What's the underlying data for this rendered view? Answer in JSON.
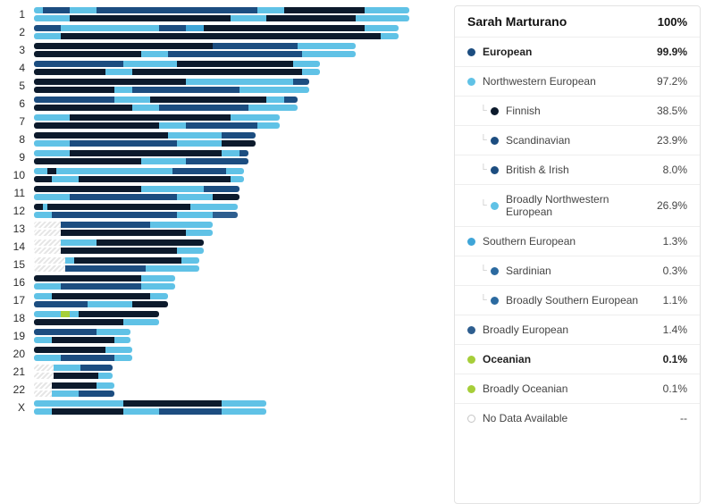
{
  "colors": {
    "finnish": "#0c1a2c",
    "scand": "#1c4d80",
    "british": "#1c4d80",
    "nweuro": "#60c2e6",
    "seuro": "#3fa5d8",
    "sard": "#2b6aa0",
    "bseuro": "#2b6aa0",
    "beuro": "#2e5e8f",
    "ocean": "#a6ce39",
    "nodata_stripe": "stripes"
  },
  "chromosomes": [
    {
      "label": "1",
      "length": 420,
      "bars": [
        {
          "segs": [
            [
              "nweuro",
              10
            ],
            [
              "scand",
              30
            ],
            [
              "nweuro",
              30
            ],
            [
              "scand",
              180
            ],
            [
              "nweuro",
              30
            ],
            [
              "finnish",
              90
            ],
            [
              "nweuro",
              50
            ]
          ]
        },
        {
          "segs": [
            [
              "nweuro",
              40
            ],
            [
              "finnish",
              180
            ],
            [
              "nweuro",
              40
            ],
            [
              "finnish",
              100
            ],
            [
              "nweuro",
              60
            ]
          ]
        }
      ]
    },
    {
      "label": "2",
      "length": 408,
      "bars": [
        {
          "segs": [
            [
              "scand",
              30
            ],
            [
              "nweuro",
              110
            ],
            [
              "scand",
              30
            ],
            [
              "seuro",
              20
            ],
            [
              "finnish",
              180
            ],
            [
              "nweuro",
              38
            ]
          ]
        },
        {
          "segs": [
            [
              "nweuro",
              30
            ],
            [
              "finnish",
              358
            ],
            [
              "nweuro",
              20
            ]
          ]
        }
      ]
    },
    {
      "label": "3",
      "length": 360,
      "bars": [
        {
          "segs": [
            [
              "finnish",
              200
            ],
            [
              "british",
              15
            ],
            [
              "scand",
              80
            ],
            [
              "nweuro",
              65
            ]
          ]
        },
        {
          "segs": [
            [
              "finnish",
              120
            ],
            [
              "nweuro",
              30
            ],
            [
              "scand",
              150
            ],
            [
              "nweuro",
              60
            ]
          ]
        }
      ]
    },
    {
      "label": "4",
      "length": 320,
      "bars": [
        {
          "segs": [
            [
              "scand",
              100
            ],
            [
              "nweuro",
              60
            ],
            [
              "finnish",
              130
            ],
            [
              "nweuro",
              30
            ]
          ]
        },
        {
          "segs": [
            [
              "finnish",
              80
            ],
            [
              "nweuro",
              30
            ],
            [
              "finnish",
              190
            ],
            [
              "nweuro",
              20
            ]
          ]
        }
      ]
    },
    {
      "label": "5",
      "length": 308,
      "bars": [
        {
          "segs": [
            [
              "finnish",
              170
            ],
            [
              "nweuro",
              120
            ],
            [
              "scand",
              18
            ]
          ]
        },
        {
          "segs": [
            [
              "finnish",
              90
            ],
            [
              "nweuro",
              20
            ],
            [
              "scand",
              120
            ],
            [
              "nweuro",
              78
            ]
          ]
        }
      ]
    },
    {
      "label": "6",
      "length": 295,
      "bars": [
        {
          "segs": [
            [
              "scand",
              90
            ],
            [
              "nweuro",
              40
            ],
            [
              "finnish",
              130
            ],
            [
              "nweuro",
              20
            ],
            [
              "scand",
              15
            ]
          ]
        },
        {
          "segs": [
            [
              "finnish",
              110
            ],
            [
              "nweuro",
              30
            ],
            [
              "scand",
              100
            ],
            [
              "nweuro",
              55
            ]
          ]
        }
      ]
    },
    {
      "label": "7",
      "length": 275,
      "bars": [
        {
          "segs": [
            [
              "nweuro",
              40
            ],
            [
              "finnish",
              180
            ],
            [
              "nweuro",
              55
            ]
          ]
        },
        {
          "segs": [
            [
              "finnish",
              140
            ],
            [
              "nweuro",
              30
            ],
            [
              "scand",
              80
            ],
            [
              "nweuro",
              25
            ]
          ]
        }
      ]
    },
    {
      "label": "8",
      "length": 248,
      "bars": [
        {
          "segs": [
            [
              "finnish",
              150
            ],
            [
              "nweuro",
              60
            ],
            [
              "scand",
              38
            ]
          ]
        },
        {
          "segs": [
            [
              "nweuro",
              40
            ],
            [
              "scand",
              120
            ],
            [
              "nweuro",
              50
            ],
            [
              "finnish",
              38
            ]
          ]
        }
      ]
    },
    {
      "label": "9",
      "length": 240,
      "bars": [
        {
          "segs": [
            [
              "nweuro",
              40
            ],
            [
              "finnish",
              170
            ],
            [
              "nweuro",
              20
            ],
            [
              "scand",
              10
            ]
          ]
        },
        {
          "segs": [
            [
              "finnish",
              120
            ],
            [
              "nweuro",
              50
            ],
            [
              "scand",
              70
            ]
          ]
        }
      ]
    },
    {
      "label": "10",
      "length": 235,
      "bars": [
        {
          "segs": [
            [
              "nweuro",
              15
            ],
            [
              "finnish",
              10
            ],
            [
              "nweuro",
              130
            ],
            [
              "scand",
              60
            ],
            [
              "nweuro",
              20
            ]
          ]
        },
        {
          "segs": [
            [
              "finnish",
              20
            ],
            [
              "nweuro",
              30
            ],
            [
              "finnish",
              170
            ],
            [
              "nweuro",
              15
            ]
          ]
        }
      ]
    },
    {
      "label": "11",
      "length": 230,
      "bars": [
        {
          "segs": [
            [
              "finnish",
              120
            ],
            [
              "nweuro",
              70
            ],
            [
              "scand",
              40
            ]
          ]
        },
        {
          "segs": [
            [
              "nweuro",
              40
            ],
            [
              "scand",
              120
            ],
            [
              "nweuro",
              40
            ],
            [
              "finnish",
              30
            ]
          ]
        }
      ]
    },
    {
      "label": "12",
      "length": 228,
      "bars": [
        {
          "segs": [
            [
              "finnish",
              10
            ],
            [
              "nweuro",
              5
            ],
            [
              "finnish",
              160
            ],
            [
              "nweuro",
              53
            ]
          ]
        },
        {
          "segs": [
            [
              "nweuro",
              20
            ],
            [
              "scand",
              140
            ],
            [
              "nweuro",
              40
            ],
            [
              "beuro",
              28
            ]
          ]
        }
      ]
    },
    {
      "label": "13",
      "length": 200,
      "bars": [
        {
          "stripe": 30,
          "segs": [
            [
              "scand",
              100
            ],
            [
              "nweuro",
              70
            ]
          ]
        },
        {
          "stripe": 30,
          "segs": [
            [
              "finnish",
              140
            ],
            [
              "nweuro",
              30
            ]
          ]
        }
      ]
    },
    {
      "label": "14",
      "length": 190,
      "bars": [
        {
          "stripe": 30,
          "segs": [
            [
              "nweuro",
              40
            ],
            [
              "finnish",
              120
            ]
          ]
        },
        {
          "stripe": 30,
          "segs": [
            [
              "finnish",
              130
            ],
            [
              "nweuro",
              30
            ]
          ]
        }
      ]
    },
    {
      "label": "15",
      "length": 185,
      "bars": [
        {
          "stripe": 35,
          "segs": [
            [
              "nweuro",
              10
            ],
            [
              "finnish",
              120
            ],
            [
              "nweuro",
              20
            ]
          ]
        },
        {
          "stripe": 35,
          "segs": [
            [
              "scand",
              90
            ],
            [
              "nweuro",
              60
            ]
          ]
        }
      ]
    },
    {
      "label": "16",
      "length": 158,
      "bars": [
        {
          "segs": [
            [
              "finnish",
              120
            ],
            [
              "nweuro",
              38
            ]
          ]
        },
        {
          "segs": [
            [
              "nweuro",
              30
            ],
            [
              "scand",
              90
            ],
            [
              "nweuro",
              38
            ]
          ]
        }
      ]
    },
    {
      "label": "17",
      "length": 150,
      "bars": [
        {
          "segs": [
            [
              "nweuro",
              20
            ],
            [
              "finnish",
              110
            ],
            [
              "nweuro",
              20
            ]
          ]
        },
        {
          "segs": [
            [
              "scand",
              60
            ],
            [
              "nweuro",
              50
            ],
            [
              "finnish",
              40
            ]
          ]
        }
      ]
    },
    {
      "label": "18",
      "length": 140,
      "bars": [
        {
          "segs": [
            [
              "nweuro",
              30
            ],
            [
              "ocean",
              10
            ],
            [
              "nweuro",
              10
            ],
            [
              "finnish",
              90
            ]
          ]
        },
        {
          "segs": [
            [
              "finnish",
              100
            ],
            [
              "nweuro",
              40
            ]
          ]
        }
      ]
    },
    {
      "label": "19",
      "length": 108,
      "bars": [
        {
          "segs": [
            [
              "scand",
              70
            ],
            [
              "nweuro",
              38
            ]
          ]
        },
        {
          "segs": [
            [
              "nweuro",
              20
            ],
            [
              "finnish",
              70
            ],
            [
              "nweuro",
              18
            ]
          ]
        }
      ]
    },
    {
      "label": "20",
      "length": 110,
      "bars": [
        {
          "segs": [
            [
              "finnish",
              80
            ],
            [
              "nweuro",
              30
            ]
          ]
        },
        {
          "segs": [
            [
              "nweuro",
              30
            ],
            [
              "scand",
              60
            ],
            [
              "nweuro",
              20
            ]
          ]
        }
      ]
    },
    {
      "label": "21",
      "length": 88,
      "bars": [
        {
          "stripe": 22,
          "segs": [
            [
              "nweuro",
              30
            ],
            [
              "scand",
              36
            ]
          ]
        },
        {
          "stripe": 22,
          "segs": [
            [
              "finnish",
              50
            ],
            [
              "nweuro",
              16
            ]
          ]
        }
      ]
    },
    {
      "label": "22",
      "length": 90,
      "bars": [
        {
          "stripe": 20,
          "segs": [
            [
              "finnish",
              50
            ],
            [
              "nweuro",
              20
            ]
          ]
        },
        {
          "stripe": 20,
          "segs": [
            [
              "nweuro",
              30
            ],
            [
              "scand",
              40
            ]
          ]
        }
      ]
    },
    {
      "label": "X",
      "length": 260,
      "bars": [
        {
          "segs": [
            [
              "nweuro",
              100
            ],
            [
              "finnish",
              110
            ],
            [
              "nweuro",
              50
            ]
          ]
        },
        {
          "segs": [
            [
              "nweuro",
              20
            ],
            [
              "finnish",
              80
            ],
            [
              "nweuro",
              40
            ],
            [
              "scand",
              70
            ],
            [
              "nweuro",
              50
            ]
          ]
        }
      ]
    }
  ],
  "panel": {
    "name": "Sarah Marturano",
    "total": "100%",
    "rows": [
      {
        "bold": true,
        "indent": 0,
        "colorKey": "scand",
        "label": "European",
        "pct": "99.9%"
      },
      {
        "indent": 0,
        "colorKey": "nweuro",
        "label": "Northwestern European",
        "pct": "97.2%"
      },
      {
        "indent": 2,
        "tree": true,
        "colorKey": "finnish",
        "label": "Finnish",
        "pct": "38.5%"
      },
      {
        "indent": 2,
        "tree": true,
        "colorKey": "scand",
        "label": "Scandinavian",
        "pct": "23.9%"
      },
      {
        "indent": 2,
        "tree": true,
        "colorKey": "british",
        "label": "British & Irish",
        "pct": "8.0%"
      },
      {
        "indent": 2,
        "tree": true,
        "colorKey": "nweuro",
        "label": "Broadly Northwestern European",
        "pct": "26.9%"
      },
      {
        "indent": 0,
        "colorKey": "seuro",
        "label": "Southern European",
        "pct": "1.3%"
      },
      {
        "indent": 2,
        "tree": true,
        "colorKey": "sard",
        "label": "Sardinian",
        "pct": "0.3%"
      },
      {
        "indent": 2,
        "tree": true,
        "colorKey": "bseuro",
        "label": "Broadly Southern European",
        "pct": "1.1%"
      },
      {
        "indent": 0,
        "colorKey": "beuro",
        "label": "Broadly European",
        "pct": "1.4%"
      },
      {
        "bold": true,
        "indent": 0,
        "colorKey": "ocean",
        "label": "Oceanian",
        "pct": "0.1%"
      },
      {
        "indent": 0,
        "colorKey": "ocean",
        "label": "Broadly Oceanian",
        "pct": "0.1%"
      },
      {
        "indent": 0,
        "hollow": true,
        "label": "No Data Available",
        "pct": "--"
      }
    ]
  }
}
